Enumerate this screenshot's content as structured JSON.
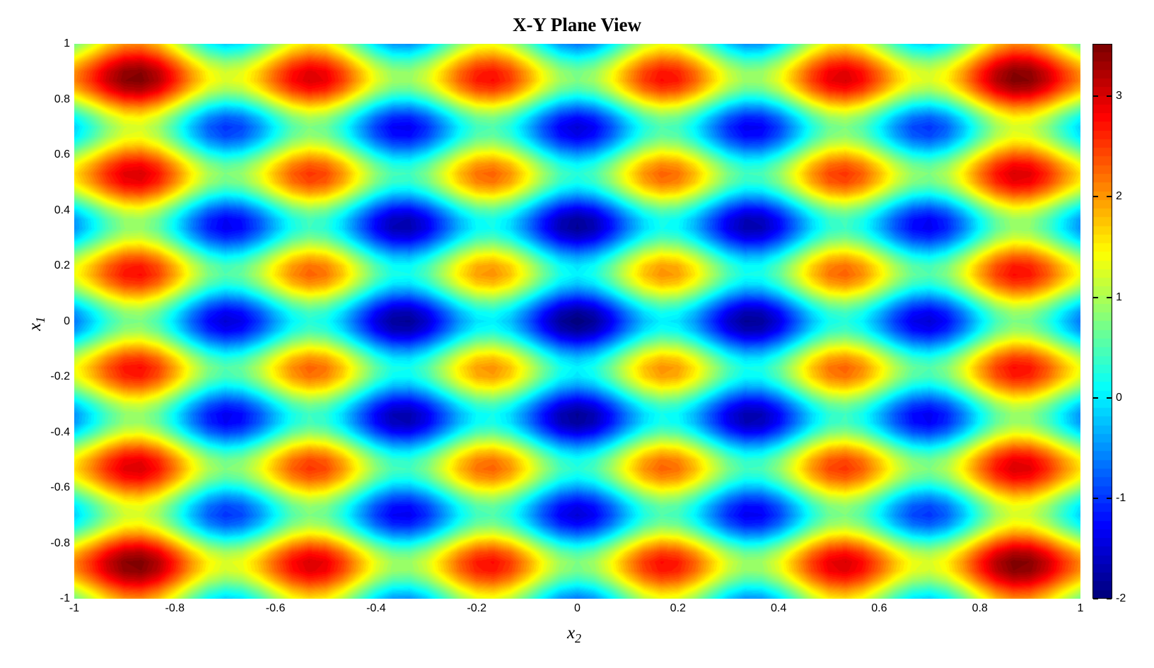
{
  "figure": {
    "background": "#ffffff",
    "text_color": "#000000"
  },
  "chart_data": {
    "type": "heatmap",
    "title": "X-Y Plane View",
    "xlabel": {
      "base": "x",
      "sub": "2"
    },
    "ylabel": {
      "base": "x",
      "sub": "1"
    },
    "x_range": [
      -1,
      1
    ],
    "y_range": [
      -1,
      1
    ],
    "function": "f(x1,x2) = x1^2 + x2^2 - cos(18*x1) - cos(18*x2)",
    "function_params": {
      "quadratic_coeff": 1,
      "cosine_coeff": -1,
      "cosine_frequency": 18
    },
    "caxis": [
      -2,
      3.5232
    ],
    "colormap": "jet",
    "color_levels": 64,
    "colormap_endpoints": {
      "min_color": "#00008f",
      "max_color": "#800000"
    },
    "grid_on": false,
    "x_ticks": {
      "values": [
        -1,
        -0.8,
        -0.6,
        -0.4,
        -0.2,
        0,
        0.2,
        0.4,
        0.6,
        0.8,
        1
      ],
      "labels": [
        "-1",
        "-0.8",
        "-0.6",
        "-0.4",
        "-0.2",
        "0",
        "0.2",
        "0.4",
        "0.6",
        "0.8",
        "1"
      ]
    },
    "y_ticks": {
      "values": [
        1,
        0.8,
        0.6,
        0.4,
        0.2,
        0,
        -0.2,
        -0.4,
        -0.6,
        -0.8,
        -1
      ],
      "labels": [
        "1",
        "0.8",
        "0.6",
        "0.4",
        "0.2",
        "0",
        "-0.2",
        "-0.4",
        "-0.6",
        "-0.8",
        "-1"
      ]
    },
    "colorbar": {
      "position": "right",
      "ticks": {
        "values": [
          3,
          2,
          1,
          0,
          -1,
          -2
        ],
        "labels": [
          "3",
          "2",
          "1",
          "0",
          "-1",
          "-2"
        ]
      }
    }
  }
}
